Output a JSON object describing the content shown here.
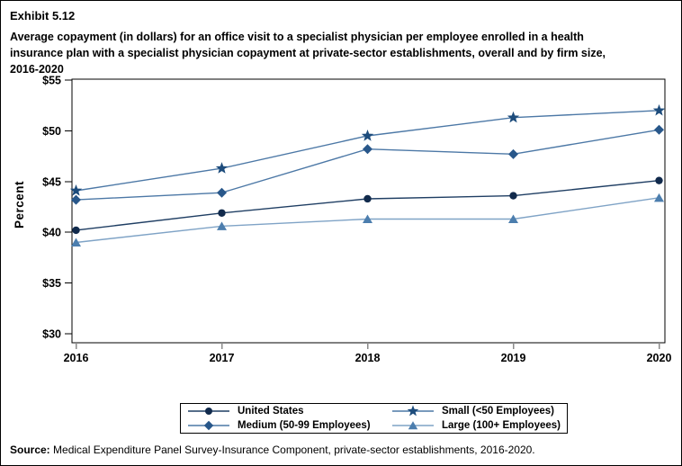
{
  "header": {
    "exhibit": "Exhibit 5.12",
    "title_lines": [
      "Average copayment (in dollars) for an office visit to a specialist physician per employee enrolled in a health",
      "insurance plan with a specialist physician copayment at private-sector establishments, overall and by firm size,",
      "2016-2020"
    ]
  },
  "chart_data": {
    "type": "line",
    "title": "Average copayment (in dollars) for an office visit to a specialist physician per employee enrolled in a health insurance plan with a specialist physician copayment at private-sector establishments, overall and by firm size, 2016-2020",
    "xlabel": "",
    "ylabel": "Percent",
    "x": [
      2016,
      2017,
      2018,
      2019,
      2020
    ],
    "x_tick_labels": [
      "2016",
      "2017",
      "2018",
      "2019",
      "2020"
    ],
    "ylim": [
      30,
      55
    ],
    "y_tick_values": [
      30,
      35,
      40,
      45,
      50,
      55
    ],
    "y_tick_labels": [
      "$30",
      "$35",
      "$40",
      "$45",
      "$50",
      "$55"
    ],
    "grid": false,
    "legend_position": "bottom",
    "series": [
      {
        "name": "United States",
        "marker": "circle",
        "color": "#112A4C",
        "line_color": "#1F3E63",
        "values": [
          40.2,
          41.9,
          43.3,
          43.6,
          45.1
        ]
      },
      {
        "name": "Small (<50 Employees)",
        "marker": "star",
        "color": "#1D4C7C",
        "line_color": "#4C78A6",
        "values": [
          44.1,
          46.3,
          49.5,
          51.3,
          52.0
        ]
      },
      {
        "name": "Medium (50-99 Employees)",
        "marker": "diamond",
        "color": "#28578A",
        "line_color": "#4C78A6",
        "values": [
          43.2,
          43.9,
          48.2,
          47.7,
          50.1
        ]
      },
      {
        "name": "Large (100+ Employees)",
        "marker": "triangle",
        "color": "#4C7EAE",
        "line_color": "#7FA3C6",
        "values": [
          39.0,
          40.6,
          41.3,
          41.3,
          43.4
        ]
      }
    ]
  },
  "footer": {
    "source_label": "Source:",
    "source_text": " Medical Expenditure Panel Survey-Insurance Component, private-sector establishments, 2016-2020."
  }
}
